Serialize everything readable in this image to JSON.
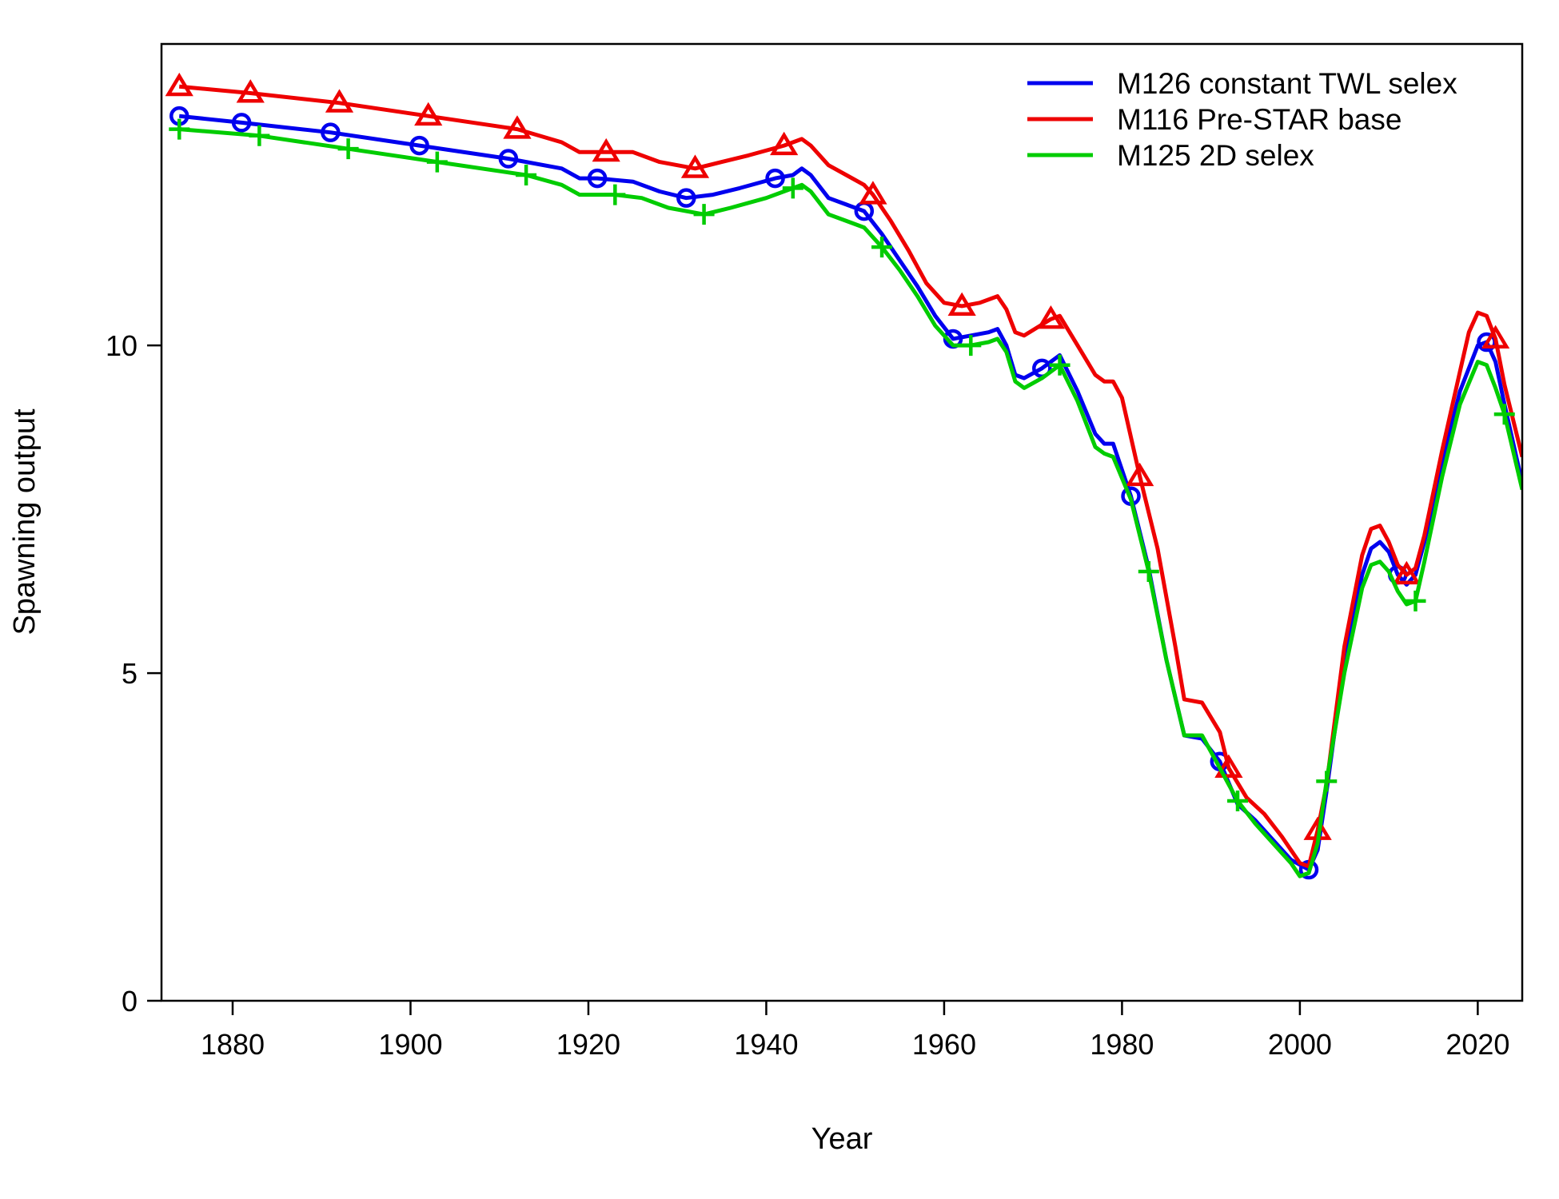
{
  "chart_data": {
    "type": "line",
    "xlabel": "Year",
    "ylabel": "Spawning output",
    "xlim": [
      1872,
      2025
    ],
    "ylim": [
      0,
      14.6
    ],
    "x_ticks": [
      1880,
      1900,
      1920,
      1940,
      1960,
      1980,
      2000,
      2020
    ],
    "y_ticks": [
      0,
      5,
      10
    ],
    "legend_position": "top-right",
    "grid": false,
    "series": [
      {
        "name": "M126 constant TWL selex",
        "color": "#0000ee",
        "marker": "circle",
        "marker_years": [
          1874,
          1881,
          1891,
          1901,
          1911,
          1921,
          1931,
          1941,
          1951,
          1961,
          1971,
          1981,
          1991,
          2001,
          2011,
          2021
        ],
        "points": [
          [
            1874,
            13.5
          ],
          [
            1881,
            13.4
          ],
          [
            1891,
            13.25
          ],
          [
            1901,
            13.05
          ],
          [
            1911,
            12.85
          ],
          [
            1917,
            12.7
          ],
          [
            1919,
            12.55
          ],
          [
            1921,
            12.55
          ],
          [
            1925,
            12.5
          ],
          [
            1928,
            12.35
          ],
          [
            1931,
            12.25
          ],
          [
            1934,
            12.3
          ],
          [
            1937,
            12.4
          ],
          [
            1941,
            12.55
          ],
          [
            1943,
            12.6
          ],
          [
            1944,
            12.7
          ],
          [
            1945,
            12.6
          ],
          [
            1947,
            12.25
          ],
          [
            1949,
            12.15
          ],
          [
            1951,
            12.05
          ],
          [
            1953,
            11.7
          ],
          [
            1955,
            11.3
          ],
          [
            1957,
            10.9
          ],
          [
            1959,
            10.45
          ],
          [
            1961,
            10.1
          ],
          [
            1963,
            10.15
          ],
          [
            1965,
            10.2
          ],
          [
            1966,
            10.25
          ],
          [
            1967,
            10.0
          ],
          [
            1968,
            9.55
          ],
          [
            1969,
            9.5
          ],
          [
            1971,
            9.65
          ],
          [
            1973,
            9.85
          ],
          [
            1975,
            9.3
          ],
          [
            1977,
            8.65
          ],
          [
            1978,
            8.5
          ],
          [
            1979,
            8.5
          ],
          [
            1981,
            7.7
          ],
          [
            1983,
            6.6
          ],
          [
            1985,
            5.2
          ],
          [
            1987,
            4.05
          ],
          [
            1989,
            4.0
          ],
          [
            1991,
            3.65
          ],
          [
            1993,
            3.0
          ],
          [
            1995,
            2.75
          ],
          [
            1997,
            2.45
          ],
          [
            1999,
            2.15
          ],
          [
            2001,
            2.0
          ],
          [
            2002,
            2.3
          ],
          [
            2003,
            3.2
          ],
          [
            2005,
            5.2
          ],
          [
            2007,
            6.5
          ],
          [
            2008,
            6.9
          ],
          [
            2009,
            7.0
          ],
          [
            2010,
            6.85
          ],
          [
            2011,
            6.5
          ],
          [
            2012,
            6.35
          ],
          [
            2013,
            6.5
          ],
          [
            2014,
            7.0
          ],
          [
            2016,
            8.2
          ],
          [
            2018,
            9.3
          ],
          [
            2020,
            10.0
          ],
          [
            2021,
            10.05
          ],
          [
            2022,
            9.75
          ],
          [
            2023,
            9.1
          ],
          [
            2025,
            7.9
          ]
        ]
      },
      {
        "name": "M116 Pre-STAR base",
        "color": "#ee0000",
        "marker": "triangle",
        "marker_years": [
          1874,
          1882,
          1892,
          1902,
          1912,
          1922,
          1932,
          1942,
          1952,
          1962,
          1972,
          1982,
          1992,
          2002,
          2012,
          2022
        ],
        "points": [
          [
            1874,
            13.95
          ],
          [
            1882,
            13.85
          ],
          [
            1892,
            13.7
          ],
          [
            1902,
            13.5
          ],
          [
            1912,
            13.3
          ],
          [
            1917,
            13.1
          ],
          [
            1919,
            12.95
          ],
          [
            1922,
            12.95
          ],
          [
            1925,
            12.95
          ],
          [
            1928,
            12.8
          ],
          [
            1932,
            12.7
          ],
          [
            1935,
            12.8
          ],
          [
            1938,
            12.9
          ],
          [
            1942,
            13.05
          ],
          [
            1944,
            13.15
          ],
          [
            1945,
            13.05
          ],
          [
            1947,
            12.75
          ],
          [
            1949,
            12.6
          ],
          [
            1951,
            12.45
          ],
          [
            1952,
            12.3
          ],
          [
            1954,
            11.9
          ],
          [
            1956,
            11.45
          ],
          [
            1958,
            10.95
          ],
          [
            1960,
            10.65
          ],
          [
            1962,
            10.6
          ],
          [
            1964,
            10.65
          ],
          [
            1966,
            10.75
          ],
          [
            1967,
            10.55
          ],
          [
            1968,
            10.2
          ],
          [
            1969,
            10.15
          ],
          [
            1972,
            10.4
          ],
          [
            1973,
            10.45
          ],
          [
            1975,
            10.0
          ],
          [
            1977,
            9.55
          ],
          [
            1978,
            9.45
          ],
          [
            1979,
            9.45
          ],
          [
            1980,
            9.2
          ],
          [
            1982,
            8.0
          ],
          [
            1984,
            6.9
          ],
          [
            1986,
            5.4
          ],
          [
            1987,
            4.6
          ],
          [
            1989,
            4.55
          ],
          [
            1991,
            4.1
          ],
          [
            1992,
            3.55
          ],
          [
            1994,
            3.1
          ],
          [
            1996,
            2.85
          ],
          [
            1998,
            2.5
          ],
          [
            2000,
            2.1
          ],
          [
            2001,
            2.05
          ],
          [
            2002,
            2.6
          ],
          [
            2003,
            3.3
          ],
          [
            2005,
            5.4
          ],
          [
            2007,
            6.8
          ],
          [
            2008,
            7.2
          ],
          [
            2009,
            7.25
          ],
          [
            2010,
            7.0
          ],
          [
            2011,
            6.65
          ],
          [
            2012,
            6.5
          ],
          [
            2013,
            6.6
          ],
          [
            2014,
            7.1
          ],
          [
            2016,
            8.4
          ],
          [
            2018,
            9.6
          ],
          [
            2019,
            10.2
          ],
          [
            2020,
            10.5
          ],
          [
            2021,
            10.45
          ],
          [
            2022,
            10.1
          ],
          [
            2023,
            9.4
          ],
          [
            2025,
            8.3
          ]
        ]
      },
      {
        "name": "M125 2D selex",
        "color": "#00cc00",
        "marker": "plus",
        "marker_years": [
          1874,
          1883,
          1893,
          1903,
          1913,
          1923,
          1933,
          1943,
          1953,
          1963,
          1973,
          1983,
          1993,
          2003,
          2013,
          2023
        ],
        "points": [
          [
            1874,
            13.3
          ],
          [
            1883,
            13.2
          ],
          [
            1893,
            13.0
          ],
          [
            1903,
            12.8
          ],
          [
            1913,
            12.6
          ],
          [
            1917,
            12.45
          ],
          [
            1919,
            12.3
          ],
          [
            1923,
            12.3
          ],
          [
            1926,
            12.25
          ],
          [
            1929,
            12.1
          ],
          [
            1933,
            12.0
          ],
          [
            1936,
            12.1
          ],
          [
            1940,
            12.25
          ],
          [
            1943,
            12.4
          ],
          [
            1944,
            12.45
          ],
          [
            1945,
            12.35
          ],
          [
            1947,
            12.0
          ],
          [
            1949,
            11.9
          ],
          [
            1951,
            11.8
          ],
          [
            1953,
            11.5
          ],
          [
            1955,
            11.15
          ],
          [
            1957,
            10.75
          ],
          [
            1959,
            10.3
          ],
          [
            1961,
            10.0
          ],
          [
            1963,
            10.0
          ],
          [
            1965,
            10.05
          ],
          [
            1966,
            10.1
          ],
          [
            1967,
            9.9
          ],
          [
            1968,
            9.45
          ],
          [
            1969,
            9.35
          ],
          [
            1971,
            9.5
          ],
          [
            1973,
            9.7
          ],
          [
            1975,
            9.15
          ],
          [
            1977,
            8.45
          ],
          [
            1978,
            8.35
          ],
          [
            1979,
            8.3
          ],
          [
            1981,
            7.65
          ],
          [
            1983,
            6.55
          ],
          [
            1985,
            5.2
          ],
          [
            1987,
            4.05
          ],
          [
            1989,
            4.05
          ],
          [
            1991,
            3.55
          ],
          [
            1993,
            3.05
          ],
          [
            1995,
            2.7
          ],
          [
            1997,
            2.4
          ],
          [
            1999,
            2.1
          ],
          [
            2000,
            1.9
          ],
          [
            2001,
            1.95
          ],
          [
            2002,
            2.4
          ],
          [
            2003,
            3.35
          ],
          [
            2005,
            5.0
          ],
          [
            2007,
            6.3
          ],
          [
            2008,
            6.65
          ],
          [
            2009,
            6.7
          ],
          [
            2010,
            6.55
          ],
          [
            2011,
            6.25
          ],
          [
            2012,
            6.05
          ],
          [
            2013,
            6.1
          ],
          [
            2014,
            6.7
          ],
          [
            2016,
            8.0
          ],
          [
            2018,
            9.1
          ],
          [
            2020,
            9.75
          ],
          [
            2021,
            9.7
          ],
          [
            2022,
            9.35
          ],
          [
            2023,
            8.95
          ],
          [
            2025,
            7.8
          ]
        ]
      }
    ]
  }
}
